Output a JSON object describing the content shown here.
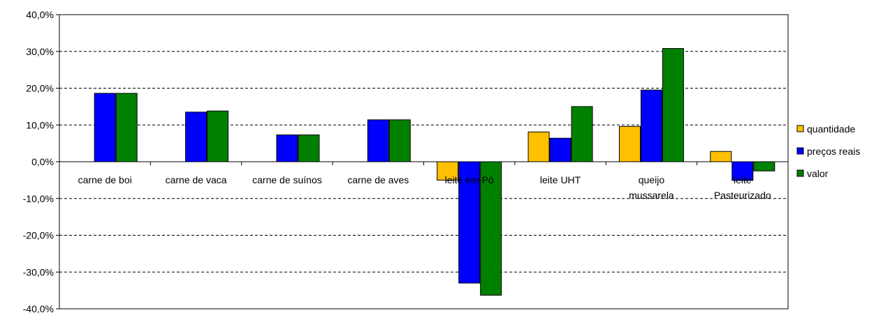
{
  "chart_data": {
    "type": "bar",
    "title": "",
    "xlabel": "",
    "ylabel": "",
    "categories": [
      [
        "carne de boi"
      ],
      [
        "carne de vaca"
      ],
      [
        "carne de suínos"
      ],
      [
        "carne de aves"
      ],
      [
        "leite em Pó"
      ],
      [
        "leite UHT"
      ],
      [
        "queijo",
        "mussarela"
      ],
      [
        "leite",
        "Pasteurizado"
      ]
    ],
    "series": [
      {
        "name": "quantidade",
        "color": "#FFC000",
        "values": [
          0,
          0,
          0,
          0,
          -5.0,
          8.1,
          9.6,
          2.8
        ]
      },
      {
        "name": "preços reais",
        "color": "#0000FF",
        "values": [
          18.6,
          13.5,
          7.3,
          11.4,
          -33.0,
          6.4,
          19.5,
          -5.1
        ]
      },
      {
        "name": "valor",
        "color": "#008000",
        "values": [
          18.6,
          13.8,
          7.3,
          11.4,
          -36.3,
          15.0,
          30.8,
          -2.5
        ]
      }
    ],
    "ylim": [
      -40,
      40
    ],
    "ytick_step": 10,
    "ytick_labels": [
      "40,0%",
      "30,0%",
      "20,0%",
      "10,0%",
      "0,0%",
      "-10,0%",
      "-20,0%",
      "-30,0%",
      "-40,0%"
    ],
    "grid": true,
    "legend_position": "right"
  }
}
